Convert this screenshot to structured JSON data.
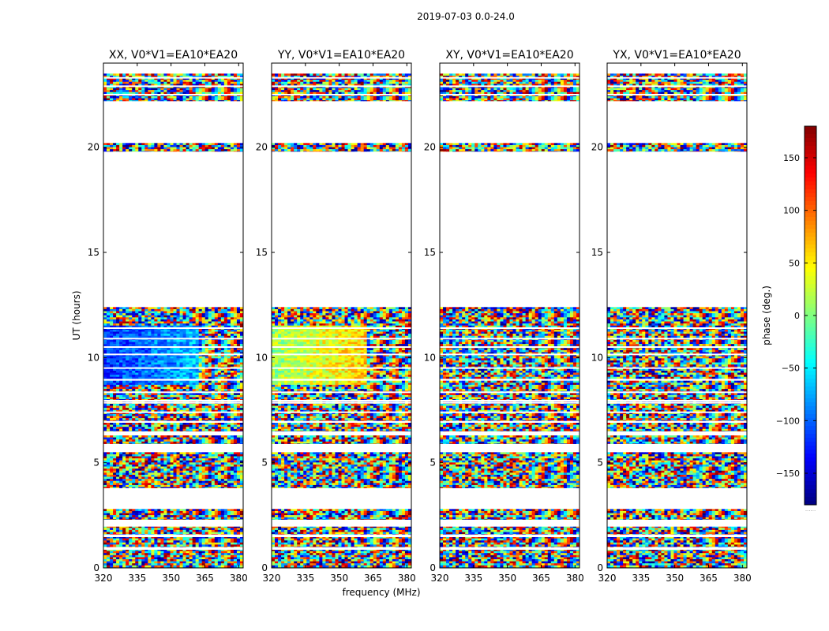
{
  "suptitle": "2019-07-03 0.0-24.0",
  "chart_data": {
    "type": "heatmap",
    "panels": [
      {
        "title": "XX, V0*V1=EA10*EA20",
        "coherent_phase_deg": -120,
        "coherent_freq_max_mhz": 362
      },
      {
        "title": "YY, V0*V1=EA10*EA20",
        "coherent_phase_deg": 10,
        "coherent_freq_max_mhz": 362
      },
      {
        "title": "XY, V0*V1=EA10*EA20",
        "coherent_phase_deg": null,
        "coherent_freq_max_mhz": null
      },
      {
        "title": "YX, V0*V1=EA10*EA20",
        "coherent_phase_deg": null,
        "coherent_freq_max_mhz": null
      }
    ],
    "xlabel": "frequency (MHz)",
    "ylabel": "UT (hours)",
    "xlim": [
      320,
      382
    ],
    "ylim": [
      0,
      24
    ],
    "xticks": [
      "320",
      "335",
      "350",
      "365",
      "380"
    ],
    "yticks": [
      "0",
      "5",
      "10",
      "15",
      "20"
    ],
    "colorbar": {
      "label": "phase (deg.)",
      "range": [
        -180,
        180
      ],
      "ticks": [
        "150",
        "100",
        "50",
        "0",
        "−50",
        "−100",
        "−150"
      ],
      "colormap": "jet",
      "footer": "......"
    },
    "ut_coverage_hours": [
      [
        0.0,
        0.9
      ],
      [
        1.0,
        1.5
      ],
      [
        1.6,
        2.0
      ],
      [
        2.3,
        2.8
      ],
      [
        3.8,
        5.5
      ],
      [
        5.9,
        6.3
      ],
      [
        6.5,
        6.9
      ],
      [
        7.0,
        7.9
      ],
      [
        8.0,
        8.9
      ],
      [
        9.0,
        12.4
      ],
      [
        19.8,
        20.2
      ],
      [
        22.2,
        23.5
      ]
    ],
    "flagged_ut_hours": [
      0.9,
      1.5,
      2.0,
      3.1,
      3.6,
      5.75,
      7.4,
      7.85,
      8.35,
      9.5,
      10.15,
      10.5,
      10.9,
      11.4,
      22.5,
      22.9,
      23.3
    ],
    "grid": false
  }
}
